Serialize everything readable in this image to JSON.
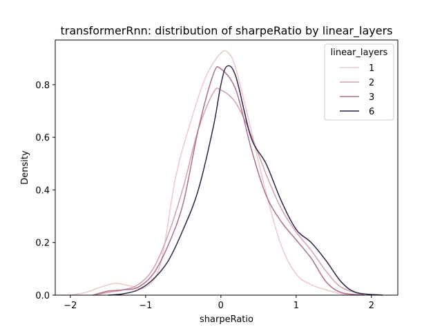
{
  "chart_data": {
    "type": "line",
    "title": "transformerRnn: distribution of sharpeRatio by linear_layers",
    "xlabel": "sharpeRatio",
    "ylabel": "Density",
    "xlim": [
      -2.2,
      2.35
    ],
    "ylim": [
      0.0,
      0.97
    ],
    "x_ticks": [
      -2,
      -1,
      0,
      1,
      2
    ],
    "x_tick_labels": [
      "−2",
      "−1",
      "0",
      "1",
      "2"
    ],
    "y_ticks": [
      0.0,
      0.2,
      0.4,
      0.6,
      0.8
    ],
    "y_tick_labels": [
      "0.0",
      "0.2",
      "0.4",
      "0.6",
      "0.8"
    ],
    "grid": false,
    "legend": {
      "title": "linear_layers",
      "placement": "top-right"
    },
    "series": [
      {
        "name": "1",
        "color": "#ecc7c6",
        "x": [
          -2.0,
          -1.8,
          -1.6,
          -1.4,
          -1.2,
          -1.0,
          -0.8,
          -0.6,
          -0.4,
          -0.2,
          0.0,
          0.1,
          0.2,
          0.4,
          0.6,
          0.8,
          1.0,
          1.2,
          1.4,
          1.6,
          1.8
        ],
        "y": [
          0.0,
          0.01,
          0.03,
          0.045,
          0.035,
          0.03,
          0.12,
          0.45,
          0.66,
          0.83,
          0.92,
          0.92,
          0.86,
          0.63,
          0.39,
          0.19,
          0.08,
          0.04,
          0.02,
          0.005,
          0.0
        ]
      },
      {
        "name": "2",
        "color": "#d49fad",
        "x": [
          -1.7,
          -1.5,
          -1.3,
          -1.1,
          -0.9,
          -0.7,
          -0.5,
          -0.3,
          -0.1,
          0.0,
          0.2,
          0.4,
          0.6,
          0.8,
          1.0,
          1.2,
          1.4,
          1.6,
          1.9
        ],
        "y": [
          0.0,
          0.01,
          0.02,
          0.04,
          0.1,
          0.23,
          0.41,
          0.63,
          0.77,
          0.78,
          0.73,
          0.61,
          0.46,
          0.33,
          0.24,
          0.17,
          0.09,
          0.03,
          0.0
        ]
      },
      {
        "name": "3",
        "color": "#ae6b8d",
        "x": [
          -1.7,
          -1.5,
          -1.3,
          -1.1,
          -0.9,
          -0.7,
          -0.5,
          -0.3,
          -0.1,
          0.0,
          0.2,
          0.4,
          0.6,
          0.8,
          1.0,
          1.2,
          1.4,
          1.6,
          1.9
        ],
        "y": [
          0.0,
          0.015,
          0.02,
          0.03,
          0.08,
          0.19,
          0.35,
          0.63,
          0.84,
          0.86,
          0.78,
          0.56,
          0.38,
          0.28,
          0.21,
          0.14,
          0.05,
          0.01,
          0.0
        ]
      },
      {
        "name": "6",
        "color": "#2e1f46",
        "x": [
          -1.5,
          -1.3,
          -1.1,
          -0.9,
          -0.7,
          -0.5,
          -0.3,
          -0.1,
          0.0,
          0.08,
          0.2,
          0.4,
          0.6,
          0.8,
          1.0,
          1.2,
          1.4,
          1.6,
          1.8,
          2.15
        ],
        "y": [
          0.0,
          0.005,
          0.02,
          0.06,
          0.13,
          0.25,
          0.4,
          0.64,
          0.8,
          0.87,
          0.83,
          0.6,
          0.5,
          0.36,
          0.25,
          0.2,
          0.13,
          0.05,
          0.01,
          0.0
        ]
      }
    ]
  }
}
